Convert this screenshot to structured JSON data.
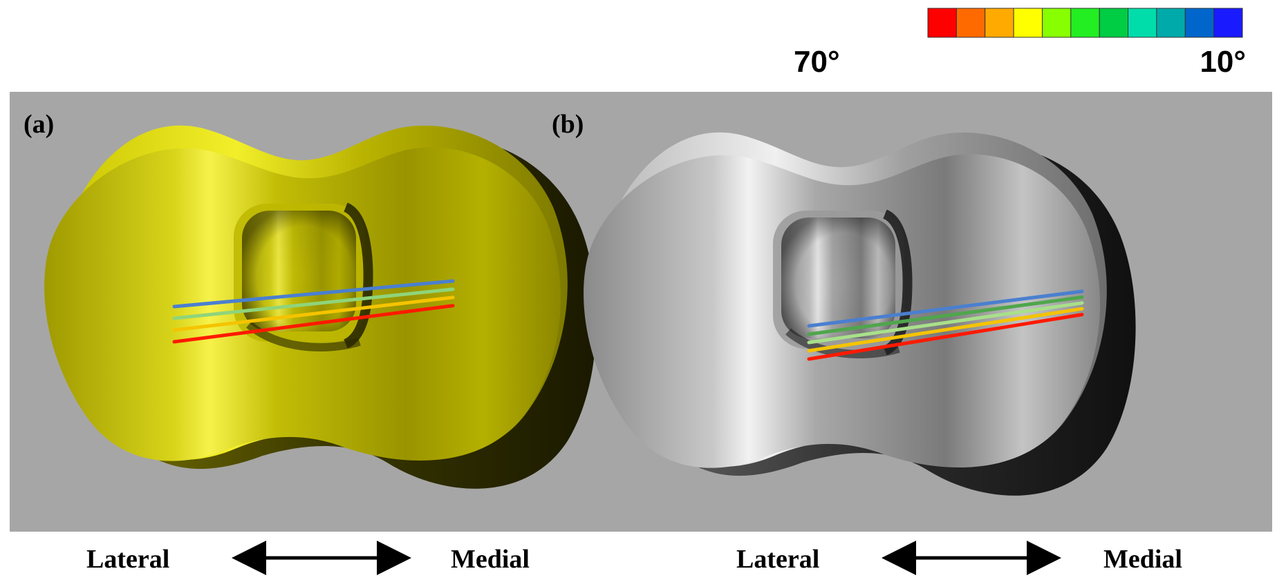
{
  "colorbar": {
    "colors": [
      "#ff0000",
      "#ff6a00",
      "#ffaa00",
      "#ffff00",
      "#88ff00",
      "#22ee22",
      "#00cc44",
      "#00ddaa",
      "#00aaaa",
      "#0066cc",
      "#1a1aff"
    ],
    "label_left": "70°",
    "label_right": "10°"
  },
  "panels": [
    {
      "label": "(a)",
      "lateral": "Lateral",
      "medial": "Medial",
      "surface_tone": "yellow",
      "line_colors": [
        "#4a7fd0",
        "#8fd47a",
        "#f5c400",
        "#ff1a00"
      ]
    },
    {
      "label": "(b)",
      "lateral": "Lateral",
      "medial": "Medial",
      "surface_tone": "gray",
      "line_colors": [
        "#4a7fd0",
        "#4fa64c",
        "#a8e08a",
        "#f5c400",
        "#ff1a00"
      ]
    }
  ],
  "background_color": "#a6a6a6"
}
